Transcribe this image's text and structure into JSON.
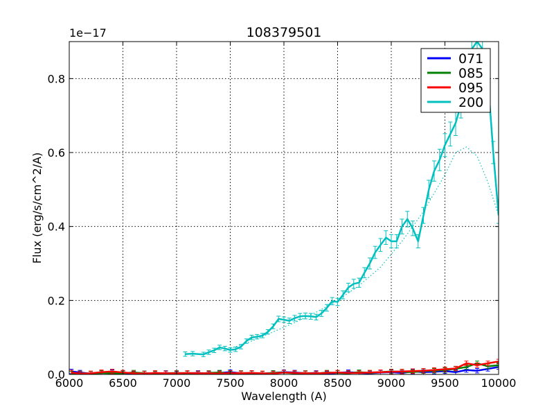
{
  "chart_data": {
    "type": "line",
    "title": "108379501",
    "xlabel": "Wavelength (A)",
    "ylabel": "Flux (erg/s/cm^2/A)",
    "offset_label": "1e−17",
    "xlim": [
      6000,
      10000
    ],
    "ylim": [
      0,
      0.9
    ],
    "xticks": [
      6000,
      6500,
      7000,
      7500,
      8000,
      8500,
      9000,
      9500,
      10000
    ],
    "yticks": [
      0.0,
      0.2,
      0.4,
      0.6,
      0.8
    ],
    "ytick_labels": [
      "0.0",
      "0.2",
      "0.4",
      "0.6",
      "0.8"
    ],
    "grid": true,
    "legend_position": "top-right",
    "series": [
      {
        "name": "071",
        "color": "#0000ff",
        "x": [
          6020,
          6100,
          6200,
          6300,
          6400,
          6500,
          6600,
          6700,
          6800,
          6900,
          7000,
          7100,
          7200,
          7300,
          7400,
          7500,
          7600,
          7700,
          7800,
          7900,
          8000,
          8100,
          8200,
          8300,
          8400,
          8500,
          8600,
          8700,
          8800,
          8900,
          9000,
          9100,
          9200,
          9300,
          9400,
          9500,
          9600,
          9700,
          9800,
          9900,
          10000
        ],
        "y": [
          0.008,
          0.005,
          0.002,
          0.004,
          0.006,
          0.004,
          0.002,
          0.003,
          0.002,
          0.004,
          0.002,
          0.003,
          0.004,
          0.002,
          0.004,
          0.006,
          0.003,
          0.004,
          0.002,
          0.004,
          0.006,
          0.005,
          0.003,
          0.004,
          0.002,
          0.004,
          0.006,
          0.004,
          0.003,
          0.005,
          0.006,
          0.004,
          0.008,
          0.006,
          0.007,
          0.009,
          0.006,
          0.012,
          0.01,
          0.015,
          0.02
        ]
      },
      {
        "name": "085",
        "color": "#008000",
        "x": [
          6020,
          6100,
          6200,
          6300,
          6400,
          6500,
          6600,
          6700,
          6800,
          6900,
          7000,
          7100,
          7200,
          7300,
          7400,
          7500,
          7600,
          7700,
          7800,
          7900,
          8000,
          8100,
          8200,
          8300,
          8400,
          8500,
          8600,
          8700,
          8800,
          8900,
          9000,
          9100,
          9200,
          9300,
          9400,
          9500,
          9600,
          9700,
          9800,
          9900,
          10000
        ],
        "y": [
          0.002,
          0.003,
          0.002,
          0.004,
          0.003,
          0.003,
          0.005,
          0.003,
          0.002,
          0.003,
          0.004,
          0.003,
          0.002,
          0.004,
          0.005,
          0.002,
          0.004,
          0.003,
          0.002,
          0.004,
          0.005,
          0.003,
          0.004,
          0.002,
          0.005,
          0.004,
          0.003,
          0.006,
          0.004,
          0.006,
          0.008,
          0.007,
          0.006,
          0.009,
          0.01,
          0.012,
          0.015,
          0.02,
          0.03,
          0.022,
          0.025
        ]
      },
      {
        "name": "095",
        "color": "#ff0000",
        "x": [
          6020,
          6100,
          6200,
          6300,
          6400,
          6500,
          6600,
          6700,
          6800,
          6900,
          7000,
          7100,
          7200,
          7300,
          7400,
          7500,
          7600,
          7700,
          7800,
          7900,
          8000,
          8100,
          8200,
          8300,
          8400,
          8500,
          8600,
          8700,
          8800,
          8900,
          9000,
          9100,
          9200,
          9300,
          9400,
          9500,
          9600,
          9700,
          9800,
          9900,
          10000
        ],
        "y": [
          0.005,
          0.002,
          0.003,
          0.006,
          0.008,
          0.005,
          0.003,
          0.002,
          0.004,
          0.003,
          0.003,
          0.004,
          0.003,
          0.003,
          0.002,
          0.004,
          0.003,
          0.004,
          0.003,
          0.002,
          0.005,
          0.004,
          0.003,
          0.003,
          0.004,
          0.005,
          0.004,
          0.004,
          0.005,
          0.006,
          0.007,
          0.008,
          0.009,
          0.01,
          0.012,
          0.014,
          0.016,
          0.03,
          0.025,
          0.03,
          0.035
        ]
      },
      {
        "name": "200",
        "color": "#00bfbf",
        "x": [
          7080,
          7150,
          7250,
          7300,
          7350,
          7400,
          7450,
          7500,
          7550,
          7600,
          7650,
          7700,
          7750,
          7800,
          7850,
          7900,
          7950,
          8000,
          8050,
          8100,
          8150,
          8200,
          8250,
          8300,
          8350,
          8400,
          8450,
          8500,
          8550,
          8600,
          8650,
          8700,
          8750,
          8800,
          8850,
          8900,
          8950,
          9000,
          9050,
          9100,
          9150,
          9200,
          9250,
          9300,
          9350,
          9400,
          9450,
          9500,
          9550,
          9600,
          9650,
          9700,
          9750,
          9800,
          9850,
          9900,
          9950,
          10000
        ],
        "y": [
          0.055,
          0.056,
          0.054,
          0.06,
          0.065,
          0.073,
          0.07,
          0.066,
          0.068,
          0.075,
          0.09,
          0.1,
          0.102,
          0.105,
          0.115,
          0.13,
          0.15,
          0.148,
          0.145,
          0.152,
          0.157,
          0.158,
          0.157,
          0.155,
          0.165,
          0.18,
          0.198,
          0.196,
          0.215,
          0.235,
          0.245,
          0.248,
          0.275,
          0.3,
          0.33,
          0.35,
          0.37,
          0.36,
          0.36,
          0.4,
          0.42,
          0.395,
          0.36,
          0.43,
          0.5,
          0.55,
          0.58,
          0.62,
          0.65,
          0.68,
          0.73,
          0.82,
          0.88,
          0.9,
          0.88,
          0.8,
          0.6,
          0.43
        ]
      }
    ],
    "fit_curve": {
      "series": "200",
      "color": "#00bfbf",
      "style": "dotted",
      "x": [
        7500,
        7700,
        7900,
        8100,
        8300,
        8500,
        8700,
        8900,
        9100,
        9300,
        9500,
        9600,
        9700,
        9800,
        9900,
        10000
      ],
      "y": [
        0.07,
        0.09,
        0.115,
        0.14,
        0.168,
        0.2,
        0.24,
        0.29,
        0.36,
        0.44,
        0.54,
        0.6,
        0.615,
        0.59,
        0.52,
        0.43
      ]
    }
  }
}
